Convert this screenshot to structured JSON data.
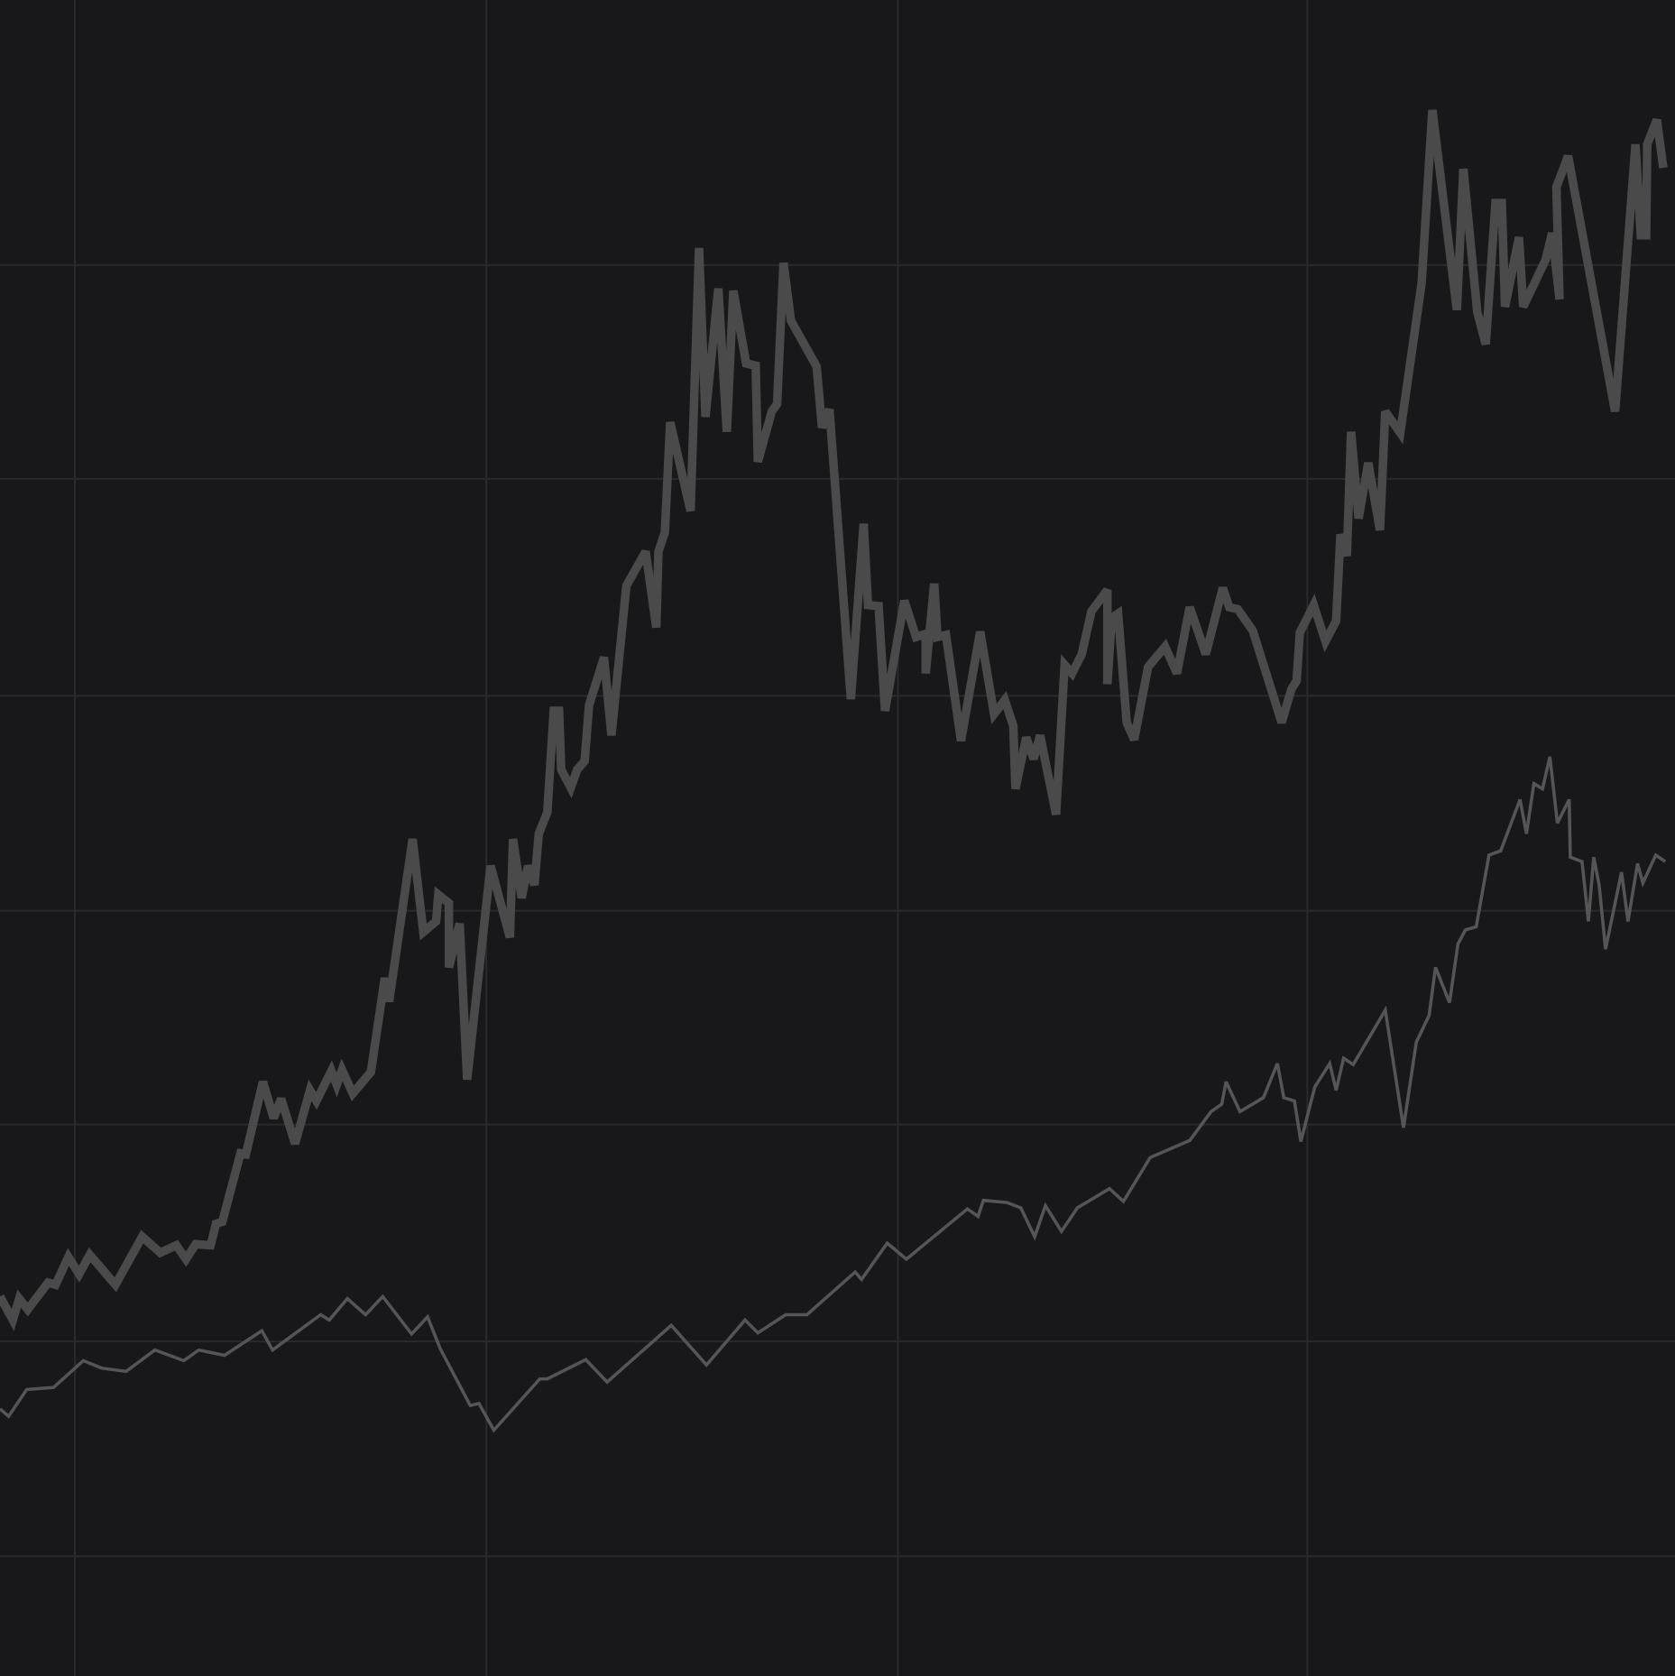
{
  "chart_data": {
    "type": "line",
    "xlim": [
      0,
      1567
    ],
    "ylim": [
      0,
      1568
    ],
    "xticks": [
      70,
      455,
      840,
      1223
    ],
    "yticks": [
      112,
      313,
      516,
      716,
      917,
      1120,
      1320
    ],
    "grid": true,
    "background": "#18171a",
    "grid_color": "#2a292d",
    "series": [
      {
        "color": "#4a4a4b",
        "width": 8,
        "x": [
          0,
          12,
          18,
          26,
          45,
          52,
          64,
          74,
          84,
          108,
          133,
          150,
          165,
          174,
          183,
          197,
          202,
          208,
          225,
          230,
          246,
          256,
          263,
          276,
          290,
          296,
          310,
          315,
          320,
          330,
          347,
          360,
          364,
          386,
          396,
          408,
          410,
          420,
          420,
          430,
          437,
          459,
          477,
          480,
          488,
          494,
          500,
          504,
          512,
          518,
          523,
          525,
          534,
          540,
          547,
          551,
          565,
          572,
          586,
          604,
          614,
          616,
          622,
          627,
          646,
          654,
          660,
          672,
          680,
          686,
          698,
          707,
          709,
          722,
          727,
          733,
          740,
          764,
          769,
          776,
          796,
          808,
          812,
          822,
          828,
          846,
          857,
          866,
          866,
          874,
          877,
          885,
          899,
          917,
          930,
          940,
          948,
          950,
          960,
          967,
          973,
          988,
          996,
          1003,
          1012,
          1021,
          1036,
          1036,
          1040,
          1046,
          1054,
          1061,
          1074,
          1090,
          1101,
          1113,
          1128,
          1144,
          1150,
          1158,
          1172,
          1199,
          1208,
          1213,
          1216,
          1229,
          1240,
          1250,
          1254,
          1260,
          1264,
          1271,
          1280,
          1291,
          1296,
          1310,
          1330,
          1340,
          1363,
          1369,
          1382,
          1390,
          1399,
          1405,
          1408,
          1421,
          1425,
          1446,
          1452,
          1459,
          1456,
          1467,
          1511,
          1530,
          1535,
          1540,
          1541,
          1550,
          1556
        ],
        "values": [
          355,
          333,
          353,
          343,
          368,
          366,
          392,
          376,
          394,
          366,
          411,
          396,
          403,
          390,
          404,
          403,
          423,
          425,
          489,
          488,
          556,
          522,
          540,
          498,
          548,
          538,
          566,
          553,
          567,
          545,
          565,
          653,
          631,
          783,
          696,
          706,
          731,
          723,
          663,
          704,
          558,
          758,
          691,
          783,
          728,
          758,
          740,
          788,
          808,
          903,
          903,
          848,
          831,
          848,
          856,
          908,
          953,
          880,
          1020,
          1052,
          981,
          1052,
          1070,
          1173,
          1090,
          1336,
          1178,
          1298,
          1164,
          1296,
          1228,
          1226,
          1136,
          1183,
          1190,
          1322,
          1268,
          1225,
          1168,
          1185,
          914,
          1078,
          1002,
          1001,
          903,
          1006,
          972,
          975,
          938,
          1022,
          972,
          974,
          875,
          977,
          900,
          913,
          889,
          830,
          878,
          858,
          880,
          806,
          946,
          938,
          956,
          996,
          1016,
          928,
          990,
          994,
          892,
          876,
          944,
          963,
          938,
          1000,
          956,
          1018,
          1000,
          998,
          978,
          892,
          923,
          931,
          976,
          1002,
          968,
          987,
          1068,
          1048,
          1164,
          1083,
          1135,
          1072,
          1183,
          1163,
          1303,
          1465,
          1278,
          1410,
          1276,
          1246,
          1378,
          1378,
          1281,
          1346,
          1281,
          1325,
          1350,
          1288,
          1393,
          1422,
          1183,
          1433,
          1348,
          1348,
          1433,
          1456,
          1411
        ]
      },
      {
        "color": "#555556",
        "width": 3,
        "x": [
          0,
          8,
          25,
          50,
          78,
          95,
          118,
          145,
          172,
          186,
          210,
          245,
          255,
          300,
          308,
          325,
          342,
          358,
          385,
          400,
          412,
          440,
          448,
          462,
          505,
          512,
          548,
          568,
          628,
          661,
          697,
          709,
          735,
          755,
          800,
          806,
          830,
          848,
          905,
          915,
          920,
          942,
          955,
          968,
          978,
          993,
          1008,
          1038,
          1051,
          1076,
          1113,
          1133,
          1143,
          1147,
          1160,
          1182,
          1195,
          1201,
          1211,
          1217,
          1230,
          1244,
          1250,
          1257,
          1266,
          1296,
          1313,
          1325,
          1337,
          1343,
          1356,
          1364,
          1371,
          1381,
          1393,
          1404,
          1422,
          1428,
          1435,
          1443,
          1450,
          1457,
          1468,
          1469,
          1480,
          1486,
          1491,
          1496,
          1502,
          1517,
          1523,
          1532,
          1537,
          1549,
          1558
        ],
        "values": [
          250,
          243,
          268,
          270,
          295,
          288,
          285,
          305,
          295,
          305,
          300,
          323,
          305,
          338,
          333,
          353,
          338,
          355,
          320,
          336,
          306,
          253,
          255,
          230,
          278,
          278,
          296,
          275,
          328,
          291,
          333,
          321,
          338,
          338,
          378,
          371,
          405,
          390,
          437,
          430,
          445,
          443,
          438,
          411,
          440,
          416,
          438,
          456,
          444,
          485,
          501,
          528,
          535,
          556,
          528,
          541,
          573,
          541,
          538,
          500,
          551,
          573,
          548,
          578,
          572,
          623,
          513,
          593,
          618,
          663,
          630,
          685,
          698,
          701,
          768,
          772,
          820,
          788,
          835,
          830,
          860,
          798,
          820,
          766,
          762,
          706,
          766,
          740,
          680,
          752,
          706,
          760,
          742,
          768,
          762
        ]
      }
    ]
  }
}
